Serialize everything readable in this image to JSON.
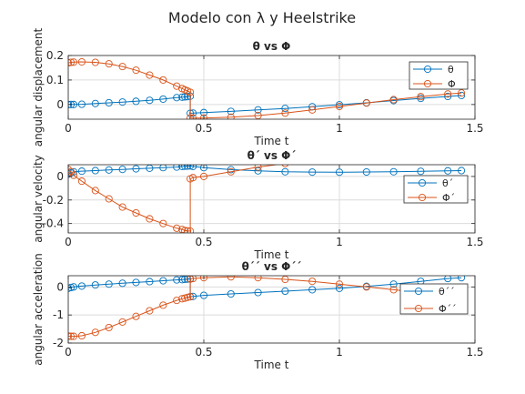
{
  "figure": {
    "title": "Modelo con λ y Heelstrike"
  },
  "colors": {
    "theta": "#0072BD",
    "phi": "#D95319",
    "grid": "#dcdcdc",
    "axis": "#262626"
  },
  "chart_data": [
    {
      "type": "line",
      "title": "θ vs Φ",
      "xlabel": "Time t",
      "ylabel": "angular displacement",
      "xlim": [
        0,
        1.5
      ],
      "ylim": [
        -0.06,
        0.2
      ],
      "xticks": [
        0,
        0.5,
        1,
        1.5
      ],
      "xtick_labels": [
        "0",
        "0.5",
        "1",
        "1.5"
      ],
      "yticks": [
        0,
        0.1,
        0.2
      ],
      "ytick_labels": [
        "0",
        "0.1",
        "0.2"
      ],
      "grid": true,
      "legend": "top-right",
      "series": [
        {
          "name": "θ",
          "color": "#0072BD",
          "x": [
            0,
            0.01,
            0.02,
            0.05,
            0.1,
            0.15,
            0.2,
            0.25,
            0.3,
            0.35,
            0.4,
            0.42,
            0.43,
            0.44,
            0.45,
            0.45,
            0.46,
            0.5,
            0.6,
            0.7,
            0.8,
            0.9,
            1.0,
            1.1,
            1.2,
            1.3,
            1.4,
            1.45
          ],
          "y": [
            0.0,
            0.0,
            0.0,
            0.001,
            0.004,
            0.007,
            0.01,
            0.013,
            0.017,
            0.022,
            0.028,
            0.03,
            0.031,
            0.032,
            0.034,
            -0.036,
            -0.035,
            -0.033,
            -0.028,
            -0.022,
            -0.016,
            -0.009,
            -0.001,
            0.007,
            0.016,
            0.025,
            0.033,
            0.037
          ]
        },
        {
          "name": "Φ",
          "color": "#D95319",
          "x": [
            0,
            0.01,
            0.02,
            0.05,
            0.1,
            0.15,
            0.2,
            0.25,
            0.3,
            0.35,
            0.4,
            0.42,
            0.43,
            0.44,
            0.45,
            0.45,
            0.46,
            0.5,
            0.6,
            0.7,
            0.8,
            0.9,
            1.0,
            1.1,
            1.2,
            1.3,
            1.4,
            1.45
          ],
          "y": [
            0.17,
            0.172,
            0.173,
            0.174,
            0.172,
            0.166,
            0.155,
            0.14,
            0.12,
            0.1,
            0.075,
            0.065,
            0.06,
            0.055,
            0.05,
            -0.055,
            -0.055,
            -0.055,
            -0.052,
            -0.045,
            -0.035,
            -0.022,
            -0.008,
            0.006,
            0.02,
            0.032,
            0.043,
            0.047
          ]
        }
      ]
    },
    {
      "type": "line",
      "title": "θ´ vs Φ´",
      "xlabel": "Time t",
      "ylabel": "angular velocity",
      "xlim": [
        0,
        1.5
      ],
      "ylim": [
        -0.48,
        0.1
      ],
      "xticks": [
        0,
        0.5,
        1,
        1.5
      ],
      "xtick_labels": [
        "0",
        "0.5",
        "1",
        "1.5"
      ],
      "yticks": [
        -0.4,
        -0.2,
        0
      ],
      "ytick_labels": [
        "-0.4",
        "-0.2",
        "0"
      ],
      "grid": true,
      "legend": "top-right",
      "series": [
        {
          "name": "θ´",
          "color": "#0072BD",
          "x": [
            0,
            0.01,
            0.02,
            0.05,
            0.1,
            0.15,
            0.2,
            0.25,
            0.3,
            0.35,
            0.4,
            0.42,
            0.43,
            0.44,
            0.45,
            0.46,
            0.5,
            0.6,
            0.7,
            0.8,
            0.9,
            1.0,
            1.1,
            1.2,
            1.3,
            1.4,
            1.45
          ],
          "y": [
            0.02,
            0.03,
            0.04,
            0.045,
            0.05,
            0.055,
            0.06,
            0.065,
            0.07,
            0.075,
            0.08,
            0.085,
            0.087,
            0.088,
            0.09,
            0.085,
            0.075,
            0.058,
            0.048,
            0.04,
            0.037,
            0.036,
            0.038,
            0.04,
            0.044,
            0.048,
            0.05
          ]
        },
        {
          "name": "Φ´",
          "color": "#D95319",
          "x": [
            0,
            0.01,
            0.02,
            0.05,
            0.1,
            0.15,
            0.2,
            0.25,
            0.3,
            0.35,
            0.4,
            0.42,
            0.43,
            0.44,
            0.45,
            0.45,
            0.46,
            0.5,
            0.6,
            0.7,
            0.8,
            0.9,
            1.0,
            1.1,
            1.2,
            1.3,
            1.4,
            1.45
          ],
          "y": [
            0.06,
            0.04,
            0.01,
            -0.04,
            -0.12,
            -0.19,
            -0.26,
            -0.31,
            -0.36,
            -0.4,
            -0.44,
            -0.45,
            -0.46,
            -0.462,
            -0.465,
            -0.02,
            -0.01,
            0.0,
            0.04,
            0.08,
            0.11,
            0.13,
            0.14,
            0.15,
            0.15,
            0.15,
            0.14,
            0.13
          ]
        }
      ]
    },
    {
      "type": "line",
      "title": "θ´´ vs Φ´´",
      "xlabel": "Time t",
      "ylabel": "angular acceleration",
      "xlim": [
        0,
        1.5
      ],
      "ylim": [
        -2,
        0.4
      ],
      "xticks": [
        0,
        0.5,
        1,
        1.5
      ],
      "xtick_labels": [
        "0",
        "0.5",
        "1",
        "1.5"
      ],
      "yticks": [
        -2,
        -1,
        0
      ],
      "ytick_labels": [
        "-2",
        "-1",
        "0"
      ],
      "grid": true,
      "legend": "top-right",
      "series": [
        {
          "name": "θ´´",
          "color": "#0072BD",
          "x": [
            0,
            0.01,
            0.02,
            0.05,
            0.1,
            0.15,
            0.2,
            0.25,
            0.3,
            0.35,
            0.4,
            0.42,
            0.43,
            0.44,
            0.45,
            0.45,
            0.46,
            0.5,
            0.6,
            0.7,
            0.8,
            0.9,
            1.0,
            1.1,
            1.2,
            1.3,
            1.4,
            1.45
          ],
          "y": [
            -0.05,
            -0.02,
            0.0,
            0.03,
            0.07,
            0.1,
            0.13,
            0.16,
            0.19,
            0.22,
            0.25,
            0.26,
            0.27,
            0.28,
            0.29,
            -0.35,
            -0.34,
            -0.3,
            -0.25,
            -0.2,
            -0.15,
            -0.1,
            -0.05,
            0.02,
            0.1,
            0.2,
            0.3,
            0.33
          ]
        },
        {
          "name": "Φ´´",
          "color": "#D95319",
          "x": [
            0,
            0.01,
            0.02,
            0.05,
            0.1,
            0.15,
            0.2,
            0.25,
            0.3,
            0.35,
            0.4,
            0.42,
            0.43,
            0.44,
            0.45,
            0.45,
            0.46,
            0.5,
            0.6,
            0.7,
            0.8,
            0.9,
            1.0,
            1.1,
            1.2,
            1.3,
            1.4,
            1.45
          ],
          "y": [
            -1.75,
            -1.76,
            -1.76,
            -1.74,
            -1.62,
            -1.45,
            -1.25,
            -1.05,
            -0.85,
            -0.65,
            -0.48,
            -0.42,
            -0.4,
            -0.37,
            -0.35,
            0.28,
            0.3,
            0.33,
            0.36,
            0.33,
            0.27,
            0.2,
            0.1,
            0.0,
            -0.1,
            -0.2,
            -0.28,
            -0.3
          ]
        }
      ]
    }
  ]
}
